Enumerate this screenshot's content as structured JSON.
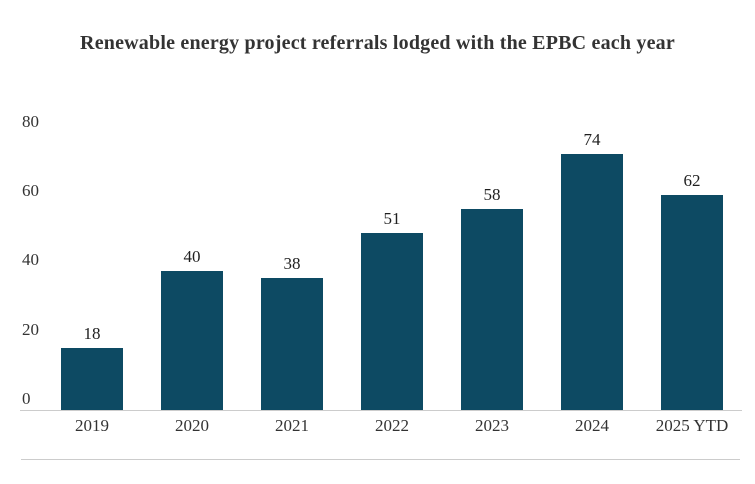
{
  "chart": {
    "title": "Renewable energy project referrals lodged with the EPBC each year"
  },
  "chart_data": {
    "type": "bar",
    "title": "Renewable energy project referrals lodged with the EPBC each year",
    "categories": [
      "2019",
      "2020",
      "2021",
      "2022",
      "2023",
      "2024",
      "2025 YTD"
    ],
    "values": [
      18,
      40,
      38,
      51,
      58,
      74,
      62
    ],
    "xlabel": "",
    "ylabel": "",
    "ylim": [
      0,
      80
    ],
    "yticks": [
      0,
      20,
      40,
      60,
      80
    ],
    "grid": false,
    "legend": "none",
    "data_labels": true,
    "bar_color": "#0d4a63",
    "value_label_color": "#1f1f1f",
    "axis_text_color": "#333333",
    "axis_line_color": "#cccccc",
    "background_color": "#ffffff"
  }
}
